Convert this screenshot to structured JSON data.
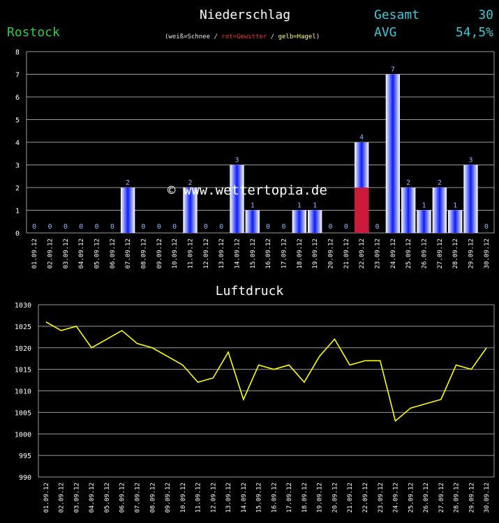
{
  "header": {
    "title": "Niederschlag",
    "station": "Rostock",
    "legend": {
      "part1": "(weiß=Schnee / ",
      "part2": "rot=Gewitter",
      "part3": " / ",
      "part4": "gelb=Hagel",
      "part5": ")"
    },
    "stats": {
      "gesamt_label": "Gesamt",
      "gesamt_value": "30",
      "avg_label": "AVG",
      "avg_value": "54,5%"
    },
    "watermark": "© www.wettertopia.de"
  },
  "colors": {
    "rain": "#0a1cff",
    "thunder": "#cc1a3c",
    "pressure_line": "#ffff00",
    "grid": "#9a9a9a",
    "label_blue": "#8fb4ff"
  },
  "chart_data": [
    {
      "type": "bar",
      "title": "Niederschlag",
      "categories": [
        "01.09.12",
        "02.09.12",
        "03.09.12",
        "04.09.12",
        "05.09.12",
        "06.09.12",
        "07.09.12",
        "08.09.12",
        "09.09.12",
        "10.09.12",
        "11.09.12",
        "12.09.12",
        "13.09.12",
        "14.09.12",
        "15.09.12",
        "16.09.12",
        "17.09.12",
        "18.09.12",
        "19.09.12",
        "20.09.12",
        "21.09.12",
        "22.09.12",
        "23.09.12",
        "24.09.12",
        "25.09.12",
        "26.09.12",
        "27.09.12",
        "28.09.12",
        "29.09.12",
        "30.09.12"
      ],
      "values": [
        0,
        0,
        0,
        0,
        0,
        0,
        2,
        0,
        0,
        0,
        2,
        0,
        0,
        3,
        1,
        0,
        0,
        1,
        1,
        0,
        0,
        4,
        0,
        7,
        2,
        1,
        2,
        1,
        3,
        0
      ],
      "thunder_values": [
        0,
        0,
        0,
        0,
        0,
        0,
        0,
        0,
        0,
        0,
        0,
        0,
        0,
        0,
        0,
        0,
        0,
        0,
        0,
        0,
        0,
        2,
        0,
        0,
        0,
        0,
        0,
        0,
        0,
        0
      ],
      "ylim": [
        0,
        8
      ],
      "yticks": [
        0,
        1,
        2,
        3,
        4,
        5,
        6,
        7,
        8
      ],
      "grid": true
    },
    {
      "type": "line",
      "title": "Luftdruck",
      "categories": [
        "01.09.12",
        "02.09.12",
        "03.09.12",
        "04.09.12",
        "05.09.12",
        "06.09.12",
        "07.09.12",
        "08.09.12",
        "09.09.12",
        "10.09.12",
        "11.09.12",
        "12.09.12",
        "13.09.12",
        "14.09.12",
        "15.09.12",
        "16.09.12",
        "17.09.12",
        "18.09.12",
        "19.09.12",
        "20.09.12",
        "21.09.12",
        "22.09.12",
        "23.09.12",
        "24.09.12",
        "25.09.12",
        "26.09.12",
        "27.09.12",
        "28.09.12",
        "29.09.12",
        "30.09.12"
      ],
      "values": [
        1026,
        1024,
        1025,
        1020,
        1022,
        1024,
        1021,
        1020,
        1018,
        1016,
        1012,
        1013,
        1019,
        1008,
        1016,
        1015,
        1016,
        1012,
        1018,
        1022,
        1016,
        1017,
        1017,
        1003,
        1006,
        1007,
        1008,
        1016,
        1015,
        1020
      ],
      "ylim": [
        990,
        1030
      ],
      "yticks": [
        990,
        995,
        1000,
        1005,
        1010,
        1015,
        1020,
        1025,
        1030
      ],
      "grid": true
    }
  ]
}
